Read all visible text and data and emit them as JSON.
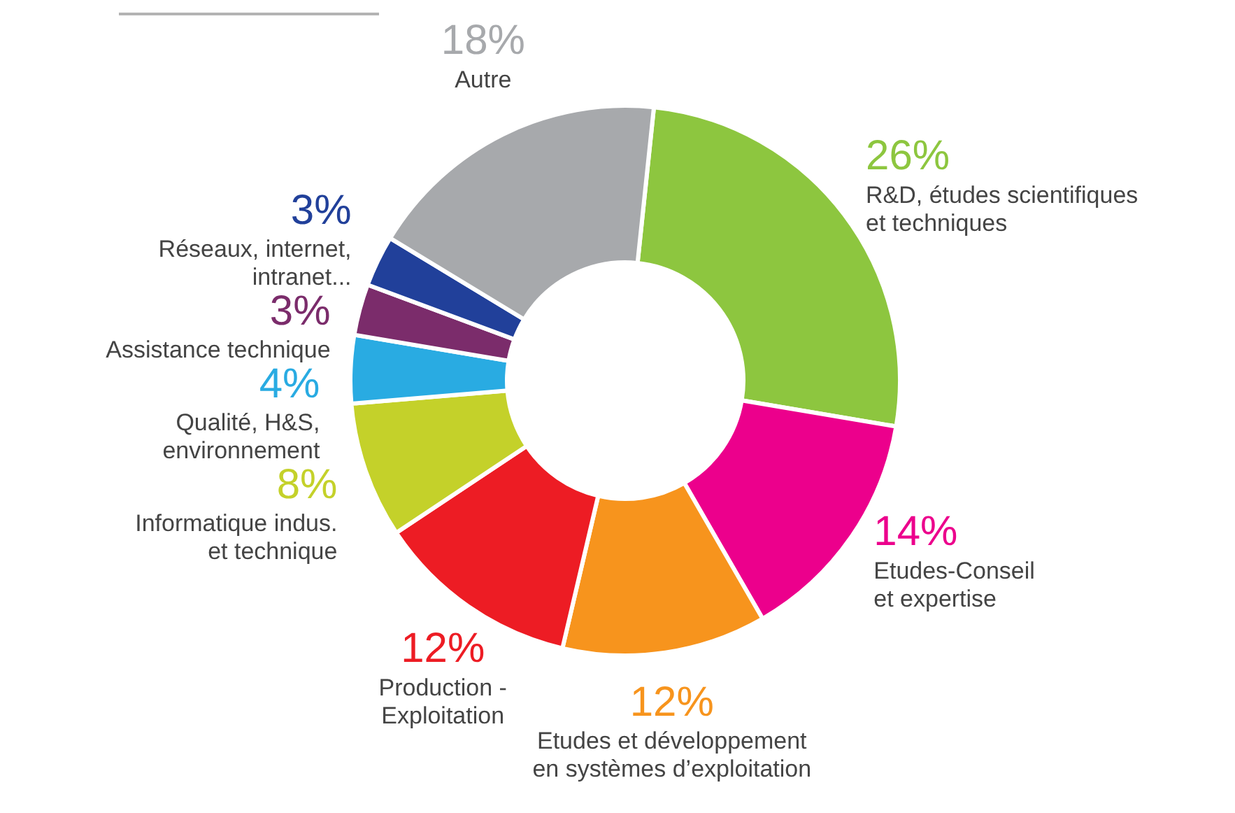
{
  "chart_data": {
    "type": "donut",
    "categories": [
      "R&D, études scientifiques\net techniques",
      "Etudes-Conseil\net expertise",
      "Etudes et développement\nen systèmes d’exploitation",
      "Production -\nExploitation",
      "Informatique indus.\net technique",
      "Qualité, H&S,\nenvironnement",
      "Assistance technique",
      "Réseaux, internet,\nintranet...",
      "Autre"
    ],
    "values": [
      26,
      14,
      12,
      12,
      8,
      4,
      3,
      3,
      18
    ],
    "value_labels": [
      "26%",
      "14%",
      "12%",
      "12%",
      "8%",
      "4%",
      "3%",
      "3%",
      "18%"
    ],
    "colors": [
      "#8dc63f",
      "#ec008c",
      "#f7941d",
      "#ed1c24",
      "#c4d12a",
      "#29abe2",
      "#7b2c6b",
      "#21409a",
      "#a7a9ac"
    ],
    "legend": false
  }
}
